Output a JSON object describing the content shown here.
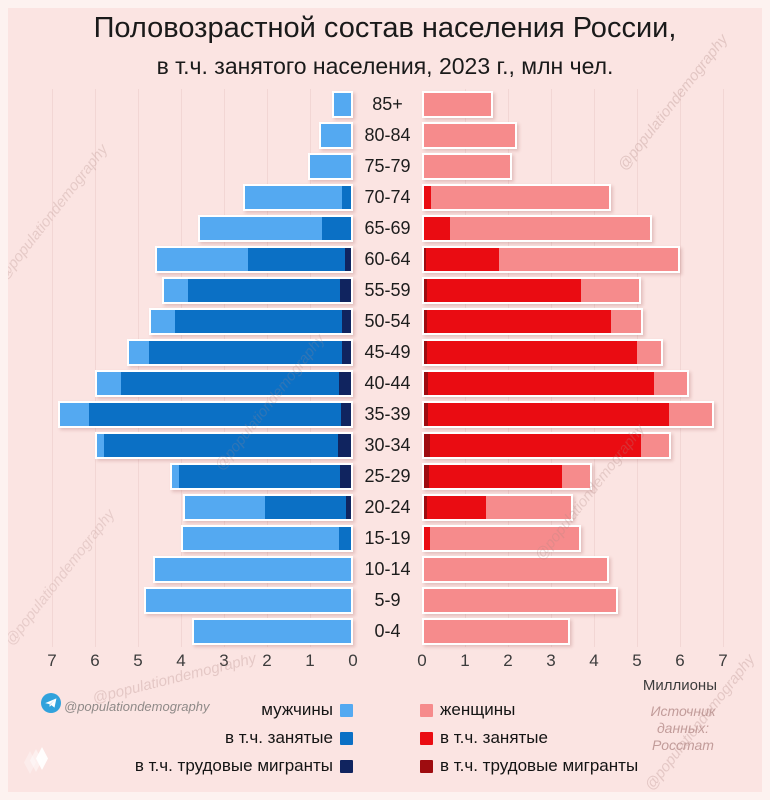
{
  "title": {
    "line1": "Половозрастной состав населения России,",
    "line2": "в т.ч. занятого населения, 2023 г., млн чел."
  },
  "axis": {
    "left_ticks": [
      "7",
      "6",
      "5",
      "4",
      "3",
      "2",
      "1",
      "0"
    ],
    "right_ticks": [
      "0",
      "1",
      "2",
      "3",
      "4",
      "5",
      "6",
      "7"
    ],
    "unit_label": "Миллионы"
  },
  "legend": {
    "male": {
      "total": "мужчины",
      "employed": "в т.ч. занятые",
      "migrant": "в т.ч. трудовые мигранты"
    },
    "female": {
      "total": "женщины",
      "employed": "в т.ч. занятые",
      "migrant": "в т.ч. трудовые мигранты"
    }
  },
  "footer": {
    "telegram_handle": "@populationdemography",
    "source_line1": "Источник данных:",
    "source_line2": "Росстат"
  },
  "watermark_text": "@populationdemography",
  "colors": {
    "male_total": "#54a9f1",
    "male_employed": "#0b70c5",
    "male_migrant": "#10245f",
    "female_total": "#f68b8c",
    "female_employed": "#ea0c12",
    "female_migrant": "#9e0c10",
    "background": "#fbe4e2",
    "frame": "#fdf2f0",
    "grid": "#f2d6d4"
  },
  "chart_data": {
    "type": "bar",
    "subtype": "population-pyramid",
    "title": "Половозрастной состав населения России, в т.ч. занятого населения, 2023 г., млн чел.",
    "unit": "млн чел.",
    "xlabel": "Миллионы",
    "x_range_each_side": [
      0,
      7
    ],
    "grid": true,
    "categories": [
      "85+",
      "80-84",
      "75-79",
      "70-74",
      "65-69",
      "60-64",
      "55-59",
      "50-54",
      "45-49",
      "40-44",
      "35-39",
      "30-34",
      "25-29",
      "20-24",
      "15-19",
      "10-14",
      "5-9",
      "0-4"
    ],
    "series": [
      {
        "name": "мужчины",
        "side": "left",
        "values": [
          0.5,
          0.8,
          1.05,
          2.55,
          3.6,
          4.6,
          4.45,
          4.75,
          5.25,
          6.0,
          6.85,
          6.0,
          4.25,
          3.95,
          4.0,
          4.65,
          4.85,
          3.75
        ]
      },
      {
        "name": "мужчины в т.ч. занятые",
        "side": "left",
        "values": [
          0,
          0,
          0,
          0.2,
          0.68,
          2.4,
          3.8,
          4.1,
          4.7,
          5.35,
          6.1,
          5.75,
          4.0,
          2.0,
          0.28,
          0,
          0,
          0
        ]
      },
      {
        "name": "мужчины в т.ч. трудовые мигранты",
        "side": "left",
        "values": [
          0,
          0,
          0,
          0,
          0,
          0.15,
          0.25,
          0.22,
          0.22,
          0.28,
          0.24,
          0.3,
          0.25,
          0.12,
          0,
          0,
          0,
          0
        ]
      },
      {
        "name": "женщины",
        "side": "right",
        "values": [
          1.65,
          2.2,
          2.1,
          4.4,
          5.35,
          6.0,
          5.1,
          5.15,
          5.6,
          6.2,
          6.8,
          5.8,
          3.95,
          3.5,
          3.7,
          4.35,
          4.55,
          3.45
        ]
      },
      {
        "name": "женщины в т.ч. занятые",
        "side": "right",
        "values": [
          0,
          0,
          0,
          0.17,
          0.6,
          1.75,
          3.65,
          4.35,
          4.95,
          5.35,
          5.7,
          5.05,
          3.2,
          1.45,
          0.15,
          0,
          0,
          0
        ]
      },
      {
        "name": "женщины в т.ч. трудовые мигранты",
        "side": "right",
        "values": [
          0,
          0,
          0,
          0,
          0,
          0.04,
          0.08,
          0.07,
          0.08,
          0.1,
          0.1,
          0.15,
          0.12,
          0.07,
          0,
          0,
          0,
          0
        ]
      }
    ]
  }
}
